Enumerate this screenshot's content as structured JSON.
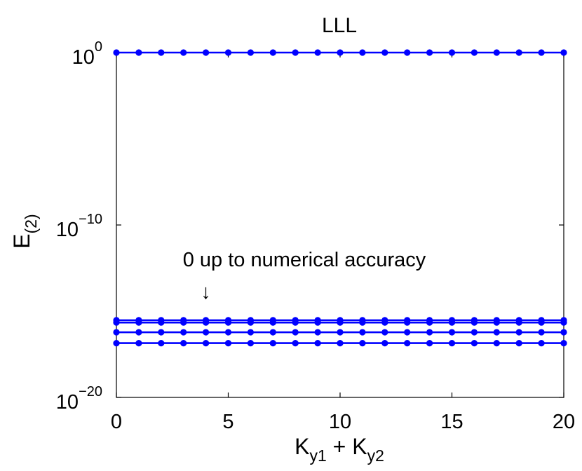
{
  "chart_data": {
    "type": "line",
    "title": "LLL",
    "xlabel": {
      "main": "K",
      "sub1": "y1",
      "plus": " + ",
      "main2": "K",
      "sub2": "y2"
    },
    "ylabel": {
      "main": "E",
      "sub": "(2)"
    },
    "yscale": "log",
    "xlim": [
      0,
      20
    ],
    "ylim": [
      1e-20,
      1.0
    ],
    "xticks": [
      "0",
      "5",
      "10",
      "15",
      "20"
    ],
    "yticks": [
      {
        "base": "10",
        "exp": "0",
        "value": 1
      },
      {
        "base": "10",
        "exp": "−10",
        "value": 1e-10
      },
      {
        "base": "10",
        "exp": "−20",
        "value": 1e-20
      }
    ],
    "x": [
      0,
      1,
      2,
      3,
      4,
      5,
      6,
      7,
      8,
      9,
      10,
      11,
      12,
      13,
      14,
      15,
      16,
      17,
      18,
      19,
      20
    ],
    "series": [
      {
        "values": [
          1,
          1,
          1,
          1,
          1,
          1,
          1,
          1,
          1,
          1,
          1,
          1,
          1,
          1,
          1,
          1,
          1,
          1,
          1,
          1,
          1
        ]
      },
      {
        "values": [
          3e-16,
          3e-16,
          3e-16,
          3e-16,
          3e-16,
          3e-16,
          3e-16,
          3e-16,
          3e-16,
          3e-16,
          3e-16,
          3e-16,
          3e-16,
          3e-16,
          3e-16,
          3e-16,
          3e-16,
          3e-16,
          3e-16,
          3e-16,
          3e-16
        ]
      },
      {
        "values": [
          2.2e-16,
          2.2e-16,
          2.2e-16,
          2.2e-16,
          2.2e-16,
          2.2e-16,
          2.2e-16,
          2.2e-16,
          2.2e-16,
          2.2e-16,
          2.2e-16,
          2.2e-16,
          2.2e-16,
          2.2e-16,
          2.2e-16,
          2.2e-16,
          2.2e-16,
          2.2e-16,
          2.2e-16,
          2.2e-16,
          2.2e-16
        ]
      },
      {
        "values": [
          6e-17,
          6e-17,
          6e-17,
          6e-17,
          6e-17,
          6e-17,
          6e-17,
          6e-17,
          6e-17,
          6e-17,
          6e-17,
          6e-17,
          6e-17,
          6e-17,
          6e-17,
          6e-17,
          6e-17,
          6e-17,
          6e-17,
          6e-17,
          6e-17
        ]
      },
      {
        "values": [
          1.4e-17,
          1.4e-17,
          1.4e-17,
          1.4e-17,
          1.4e-17,
          1.4e-17,
          1.4e-17,
          1.4e-17,
          1.4e-17,
          1.4e-17,
          1.4e-17,
          1.4e-17,
          1.4e-17,
          1.4e-17,
          1.4e-17,
          1.4e-17,
          1.4e-17,
          1.4e-17,
          1.4e-17,
          1.4e-17,
          1.4e-17
        ]
      }
    ],
    "series_color": "#0000ff",
    "grid": false,
    "annotation": {
      "text": "0 up to numerical accuracy",
      "arrow": "↓",
      "points_to_x": 4
    }
  }
}
